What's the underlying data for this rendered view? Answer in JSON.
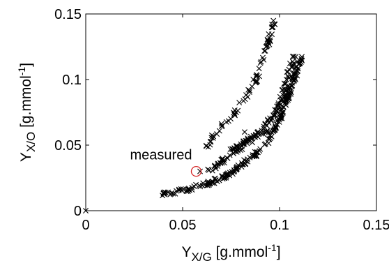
{
  "chart_data": {
    "type": "scatter",
    "title": "",
    "xlabel": {
      "main": "Y",
      "sub": "X/G",
      "unit_pre": " [g.mmol",
      "unit_sup": "-1",
      "unit_post": "]"
    },
    "ylabel": {
      "main": "Y",
      "sub": "X/O",
      "unit_pre": " [g.mmol",
      "unit_sup": "-1",
      "unit_post": "]"
    },
    "xlim": [
      0,
      0.15
    ],
    "ylim": [
      0,
      0.15
    ],
    "xticks": [
      0,
      0.05,
      0.1,
      0.15
    ],
    "yticks": [
      0,
      0.05,
      0.1,
      0.15
    ],
    "xtick_labels": [
      "0",
      "0.05",
      "0.1",
      "0.15"
    ],
    "ytick_labels": [
      "0",
      "0.05",
      "0.1",
      "0.15"
    ],
    "grid": false,
    "marker_color": "#000000",
    "series": [
      {
        "marker": "x",
        "segments": [
          {
            "x": [
              0.04,
              0.046,
              0.052,
              0.058,
              0.064,
              0.07,
              0.075,
              0.08,
              0.084,
              0.088,
              0.091,
              0.094,
              0.096,
              0.098,
              0.1,
              0.102,
              0.104,
              0.106,
              0.108,
              0.11,
              0.111
            ],
            "y": [
              0.013,
              0.014,
              0.016,
              0.019,
              0.021,
              0.025,
              0.029,
              0.034,
              0.039,
              0.044,
              0.048,
              0.053,
              0.058,
              0.064,
              0.07,
              0.078,
              0.086,
              0.094,
              0.104,
              0.112,
              0.117
            ],
            "n": 230
          },
          {
            "x": [
              0.064,
              0.068,
              0.072,
              0.076,
              0.08,
              0.083,
              0.086,
              0.088,
              0.09,
              0.092,
              0.094,
              0.096,
              0.098,
              0.1,
              0.102,
              0.104,
              0.106,
              0.108
            ],
            "y": [
              0.03,
              0.035,
              0.039,
              0.044,
              0.048,
              0.052,
              0.055,
              0.058,
              0.061,
              0.064,
              0.067,
              0.071,
              0.075,
              0.082,
              0.09,
              0.1,
              0.11,
              0.121
            ],
            "n": 110
          },
          {
            "x": [
              0.062,
              0.066,
              0.07,
              0.074,
              0.078,
              0.081,
              0.084,
              0.087,
              0.09,
              0.092,
              0.094,
              0.096,
              0.098
            ],
            "y": [
              0.048,
              0.056,
              0.063,
              0.07,
              0.077,
              0.083,
              0.09,
              0.098,
              0.108,
              0.118,
              0.127,
              0.138,
              0.148
            ],
            "n": 75
          },
          {
            "x": [
              0.074,
              0.078,
              0.081,
              0.084,
              0.087,
              0.09,
              0.093,
              0.096
            ],
            "y": [
              0.045,
              0.049,
              0.052,
              0.054,
              0.056,
              0.058,
              0.06,
              0.062
            ],
            "n": 30
          }
        ],
        "extra_points": [
          {
            "x": 0,
            "y": 0
          },
          {
            "x": 0.059,
            "y": 0.03
          },
          {
            "x": 0.082,
            "y": 0.06
          },
          {
            "x": 0.086,
            "y": 0.052
          },
          {
            "x": 0.09,
            "y": 0.047
          }
        ]
      }
    ],
    "annotation": {
      "label": "measured",
      "x": 0.057,
      "y": 0.03,
      "marker": "circle",
      "color": "#d62728"
    }
  }
}
